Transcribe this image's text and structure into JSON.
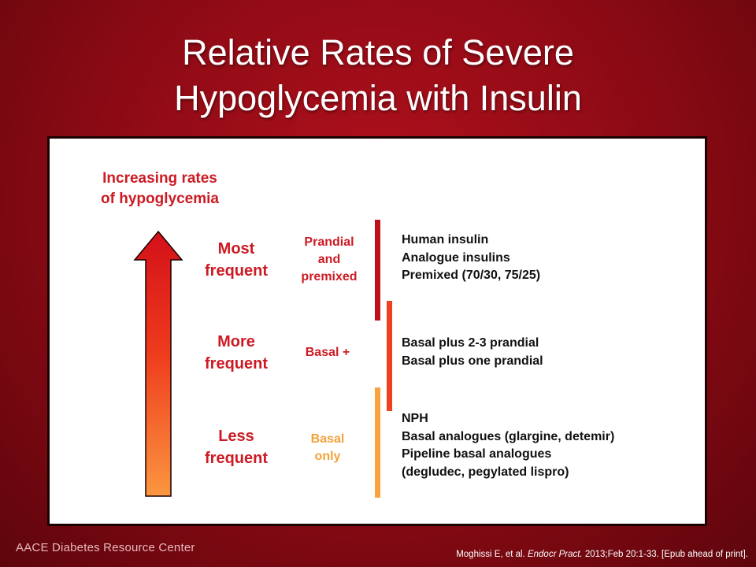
{
  "title": {
    "line1": "Relative Rates of Severe",
    "line2": "Hypoglycemia with Insulin"
  },
  "axis_label": {
    "line1": "Increasing rates",
    "line2": "of hypoglycemia"
  },
  "frequency_levels": [
    {
      "line1": "Most",
      "line2": "frequent"
    },
    {
      "line1": "More",
      "line2": "frequent"
    },
    {
      "line1": "Less",
      "line2": "frequent"
    }
  ],
  "categories": [
    {
      "lines": [
        "Prandial",
        "and",
        "premixed"
      ],
      "color": "#cc1b24"
    },
    {
      "lines": [
        "Basal +"
      ],
      "color": "#cc1b24"
    },
    {
      "lines": [
        "Basal",
        "only"
      ],
      "color": "#f4a13a"
    }
  ],
  "regimens": [
    {
      "items": [
        "Human insulin",
        "Analogue insulins",
        "Premixed (70/30, 75/25)"
      ],
      "bar_color": "#c0101c"
    },
    {
      "items": [
        "Basal plus 2-3 prandial",
        "Basal plus one prandial"
      ],
      "bar_color": "#f0411e"
    },
    {
      "items": [
        "NPH",
        "Basal analogues (glargine, detemir)",
        "Pipeline basal analogues",
        "(degludec, pegylated lispro)"
      ],
      "bar_color": "#f7a43e"
    }
  ],
  "footer": {
    "organization": "AACE Diabetes Resource Center",
    "citation_pre": "Moghissi E, et al. ",
    "citation_journal": "Endocr Pract.",
    "citation_post": " 2013;Feb 20:1-33. [Epub ahead of print]."
  },
  "colors": {
    "accent_red": "#cc1b24",
    "arrow_top": "#d4101a",
    "arrow_bottom": "#fb9640"
  }
}
